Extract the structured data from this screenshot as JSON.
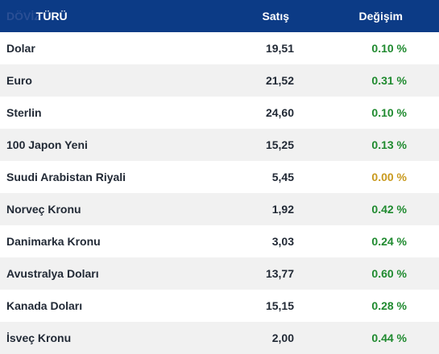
{
  "header": {
    "name_ghost": "DÖVİZ",
    "name_label": "TÜRÜ",
    "sell_label": "Satış",
    "change_label": "Değişim"
  },
  "rows": [
    {
      "name": "Dolar",
      "sell": "19,51",
      "change": "0.10 %"
    },
    {
      "name": "Euro",
      "sell": "21,52",
      "change": "0.31 %"
    },
    {
      "name": "Sterlin",
      "sell": "24,60",
      "change": "0.10 %"
    },
    {
      "name": "100 Japon Yeni",
      "sell": "15,25",
      "change": "0.13 %"
    },
    {
      "name": "Suudi Arabistan Riyali",
      "sell": "5,45",
      "change": "0.00 %"
    },
    {
      "name": "Norveç Kronu",
      "sell": "1,92",
      "change": "0.42 %"
    },
    {
      "name": "Danimarka Kronu",
      "sell": "3,03",
      "change": "0.24 %"
    },
    {
      "name": "Avustralya Doları",
      "sell": "13,77",
      "change": "0.60 %"
    },
    {
      "name": "Kanada Doları",
      "sell": "15,15",
      "change": "0.28 %"
    },
    {
      "name": "İsveç Kronu",
      "sell": "2,00",
      "change": "0.44 %"
    }
  ],
  "colors": {
    "header_bg": "#0c3b86",
    "positive": "#1f8a2f",
    "neutral": "#c99a1f"
  }
}
